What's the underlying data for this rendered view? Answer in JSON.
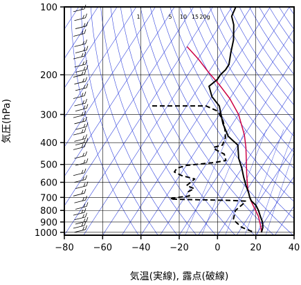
{
  "chart_data": {
    "type": "line",
    "subtype": "skew-T log-P thermodynamic diagram",
    "xlabel": "気温(実線), 露点(破線)",
    "ylabel": "気圧(hPa)",
    "xlim": [
      -80,
      40
    ],
    "ylim": [
      1030,
      100
    ],
    "y_scale": "log",
    "x_ticks": [
      -80,
      -60,
      -40,
      -20,
      0,
      20,
      40
    ],
    "y_ticks": [
      100,
      200,
      300,
      400,
      500,
      600,
      700,
      800,
      900,
      1000
    ],
    "grid": true,
    "mixing_ratio_labels": [
      "1",
      "5",
      "10",
      "15",
      "20g"
    ],
    "colors": {
      "temperature": "#000000",
      "dewpoint": "#000000",
      "parcel": "#cc0044",
      "background_lines": "#3344dd",
      "grid": "#000000"
    },
    "series": [
      {
        "style": "solid",
        "points": [
          [
            -68,
            100
          ],
          [
            -67,
            110
          ],
          [
            -63,
            120
          ],
          [
            -58,
            140
          ],
          [
            -55,
            160
          ],
          [
            -52,
            180
          ],
          [
            -52,
            190
          ],
          [
            -53,
            200
          ],
          [
            -53,
            210
          ],
          [
            -55,
            225
          ],
          [
            -50,
            250
          ],
          [
            -43,
            275
          ],
          [
            -35,
            330
          ],
          [
            -28,
            375
          ],
          [
            -20,
            410
          ],
          [
            -15,
            470
          ],
          [
            -10,
            520
          ],
          [
            -6,
            570
          ],
          [
            -2,
            620
          ],
          [
            2,
            670
          ],
          [
            4,
            700
          ],
          [
            6,
            725
          ],
          [
            10,
            760
          ],
          [
            13,
            800
          ],
          [
            16,
            850
          ],
          [
            19,
            900
          ],
          [
            21,
            950
          ],
          [
            22,
            1000
          ]
        ]
      },
      {
        "style": "dashed",
        "points": [
          [
            -78,
            275
          ],
          [
            -50,
            275
          ],
          [
            -42,
            290
          ],
          [
            -36,
            320
          ],
          [
            -32,
            350
          ],
          [
            -29,
            380
          ],
          [
            -28,
            410
          ],
          [
            -32,
            420
          ],
          [
            -30,
            430
          ],
          [
            -24,
            450
          ],
          [
            -22,
            470
          ],
          [
            -21,
            480
          ],
          [
            -26,
            490
          ],
          [
            -40,
            505
          ],
          [
            -44,
            520
          ],
          [
            -44,
            540
          ],
          [
            -39,
            560
          ],
          [
            -31,
            580
          ],
          [
            -32,
            600
          ],
          [
            -33,
            620
          ],
          [
            -28,
            640
          ],
          [
            -30,
            660
          ],
          [
            -28,
            690
          ],
          [
            -36,
            705
          ],
          [
            -37,
            712
          ],
          [
            -27,
            716
          ],
          [
            -5,
            722
          ],
          [
            3,
            727
          ],
          [
            3,
            740
          ],
          [
            1,
            800
          ],
          [
            3,
            880
          ],
          [
            10,
            950
          ],
          [
            18,
            1000
          ]
        ]
      },
      {
        "style": "solid",
        "points": [
          [
            -80,
            150
          ],
          [
            -70,
            170
          ],
          [
            -60,
            195
          ],
          [
            -50,
            222
          ],
          [
            -40,
            255
          ],
          [
            -30,
            300
          ],
          [
            -20,
            370
          ],
          [
            -15,
            420
          ],
          [
            -10,
            485
          ],
          [
            -5,
            560
          ],
          [
            0,
            640
          ],
          [
            5,
            715
          ],
          [
            10,
            780
          ],
          [
            15,
            850
          ],
          [
            20,
            950
          ],
          [
            22,
            1000
          ]
        ]
      }
    ]
  }
}
